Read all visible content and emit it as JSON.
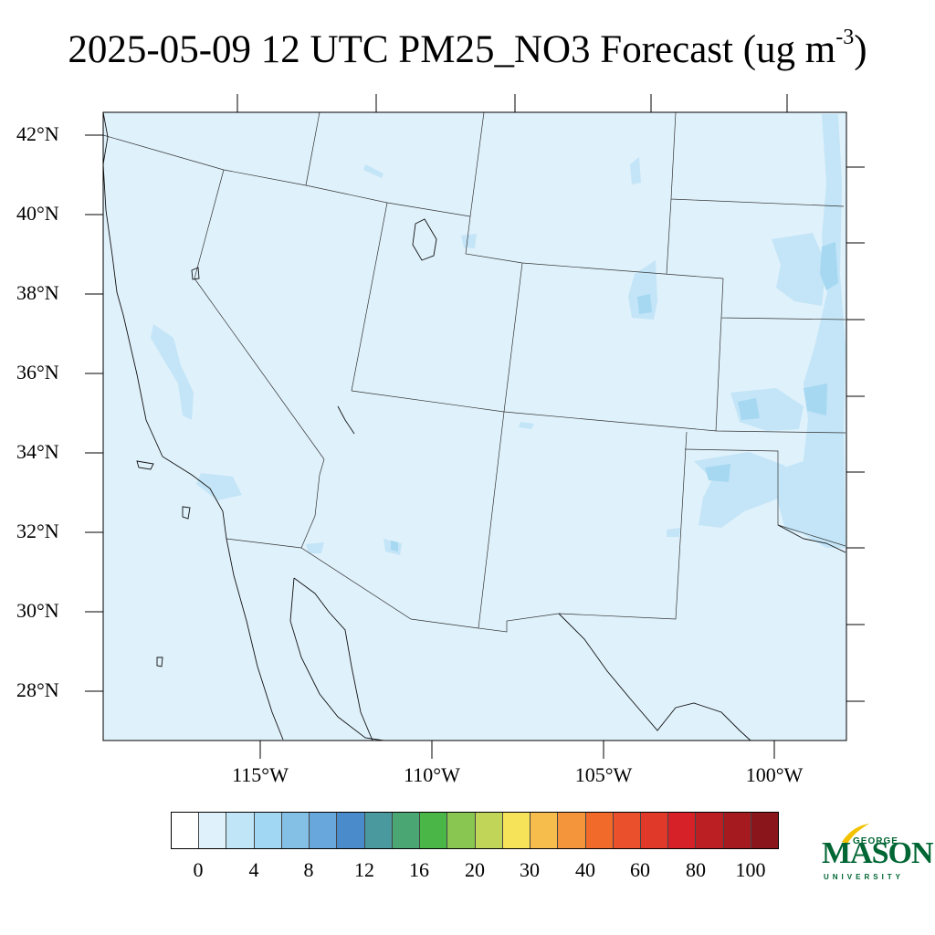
{
  "title": {
    "main": "2025-05-09 12 UTC PM25_NO3 Forecast (ug m",
    "superscript": "-3",
    "close": ")"
  },
  "map": {
    "background_color": "#dff1fb",
    "latitude_labels": [
      "42°N",
      "40°N",
      "38°N",
      "36°N",
      "34°N",
      "32°N",
      "30°N",
      "28°N"
    ],
    "longitude_labels": [
      "115°W",
      "110°W",
      "105°W",
      "100°W"
    ]
  },
  "colorbar": {
    "colors": [
      "#ffffff",
      "#dff1fb",
      "#bfe5f7",
      "#a1d7f3",
      "#84c0e6",
      "#67a7dc",
      "#4a8bcb",
      "#4a999e",
      "#4aa672",
      "#4ab648",
      "#88c651",
      "#c1d658",
      "#f7e359",
      "#f6bd4c",
      "#f4953c",
      "#f26a2a",
      "#e9502b",
      "#e0392a",
      "#d72128",
      "#bb1e23",
      "#a41a1f",
      "#8a161b"
    ],
    "tick_labels": [
      "0",
      "4",
      "8",
      "12",
      "16",
      "20",
      "30",
      "40",
      "60",
      "80",
      "100"
    ]
  },
  "logo": {
    "top_text": "GEORGE",
    "main_text": "MASON",
    "bottom_text": "UNIVERSITY",
    "color": "#006633",
    "accent_color": "#f2c200"
  }
}
